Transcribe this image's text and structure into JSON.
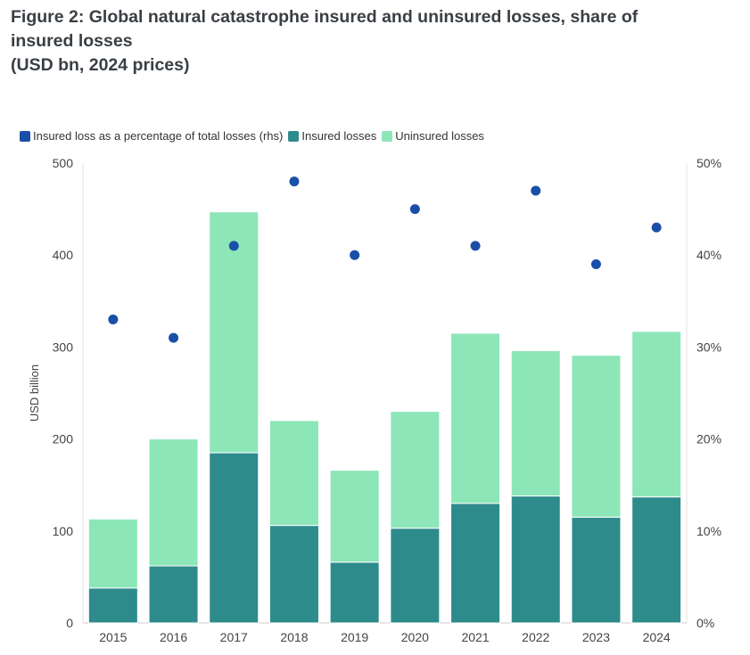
{
  "title_lines": [
    "Figure 2: Global natural catastrophe insured and uninsured losses, share of",
    "insured losses",
    "(USD bn, 2024 prices)"
  ],
  "legend": [
    {
      "label": "Insured loss as a percentage of total losses (rhs)",
      "color": "#1a4fa8"
    },
    {
      "label": "Insured losses",
      "color": "#2e8b8c"
    },
    {
      "label": "Uninsured losses",
      "color": "#8de6b8"
    }
  ],
  "chart_data": {
    "type": "bar",
    "stacked": true,
    "categories": [
      "2015",
      "2016",
      "2017",
      "2018",
      "2019",
      "2020",
      "2021",
      "2022",
      "2023",
      "2024"
    ],
    "series": [
      {
        "name": "Insured losses",
        "values": [
          38,
          62,
          185,
          106,
          66,
          103,
          130,
          138,
          115,
          137
        ],
        "color": "#2e8b8c"
      },
      {
        "name": "Uninsured losses",
        "values": [
          75,
          138,
          262,
          114,
          100,
          127,
          185,
          158,
          176,
          180
        ],
        "color": "#8de6b8"
      }
    ],
    "secondary_series": {
      "name": "Insured loss as a percentage of total losses (rhs)",
      "type": "scatter",
      "axis": "right",
      "values": [
        33,
        31,
        41,
        48,
        40,
        45,
        41,
        47,
        39,
        43
      ],
      "color": "#1a4fa8"
    },
    "ylabel": "USD billion",
    "ylim": [
      0,
      500
    ],
    "yticks": [
      "0",
      "100",
      "200",
      "300",
      "400",
      "500"
    ],
    "y2lim": [
      0,
      50
    ],
    "y2ticks": [
      "0%",
      "10%",
      "20%",
      "30%",
      "40%",
      "50%"
    ],
    "legend_position": "top-left",
    "grid": false
  }
}
